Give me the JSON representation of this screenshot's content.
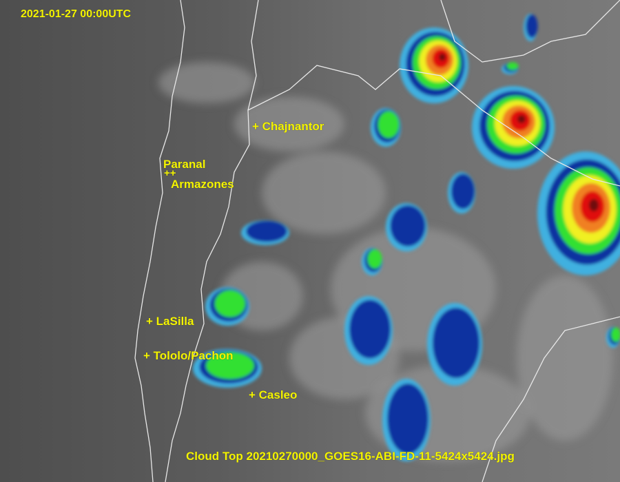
{
  "timestamp": "2021-01-27 00:00UTC",
  "caption": "Cloud Top 20210270000_GOES16-ABI-FD-11-5424x5424.jpg",
  "sites": {
    "chajnantor": "+ Chajnantor",
    "paranal": "Paranal",
    "paranal_marker": "++",
    "armazones": "Armazones",
    "lasilla": "+ LaSilla",
    "tololo": "+ Tololo/Pachon",
    "casleo": "+ Casleo"
  },
  "colors": {
    "label": "#f4f400",
    "border": "#e8e8e8",
    "scale": [
      "#40b0e0",
      "#1030a0",
      "#30e030",
      "#f0f020",
      "#f08020",
      "#e01010",
      "#701010"
    ]
  }
}
